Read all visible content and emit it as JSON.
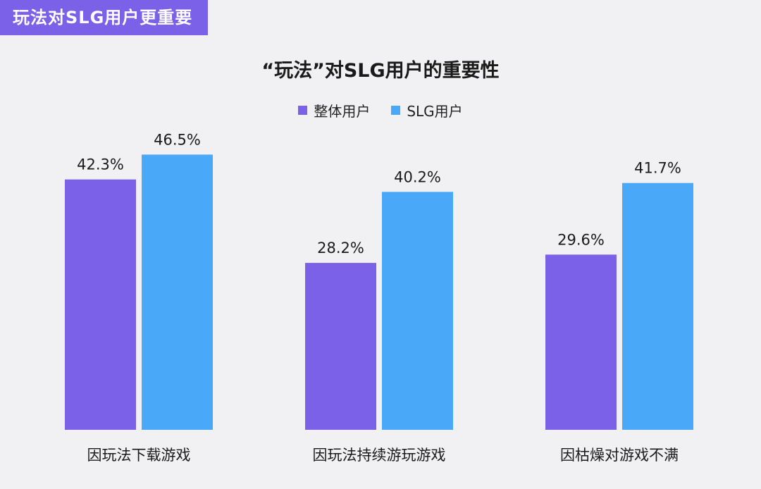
{
  "banner": {
    "text": "玩法对SLG用户更重要"
  },
  "colors": {
    "banner_bg": "#7b61e8",
    "overall": "#7b61e8",
    "slg": "#4aa8f8"
  },
  "chart_data": {
    "type": "bar",
    "title": "“玩法”对SLG用户的重要性",
    "legend_placement": "top-center",
    "grid": false,
    "ylim": [
      0,
      50
    ],
    "categories": [
      "因玩法下载游戏",
      "因玩法持续游玩游戏",
      "因枯燥对游戏不满"
    ],
    "series": [
      {
        "name": "整体用户",
        "values": [
          42.3,
          28.2,
          29.6
        ],
        "labels": [
          "42.3%",
          "28.2%",
          "29.6%"
        ]
      },
      {
        "name": "SLG用户",
        "values": [
          46.5,
          40.2,
          41.7
        ],
        "labels": [
          "46.5%",
          "40.2%",
          "41.7%"
        ]
      }
    ]
  }
}
